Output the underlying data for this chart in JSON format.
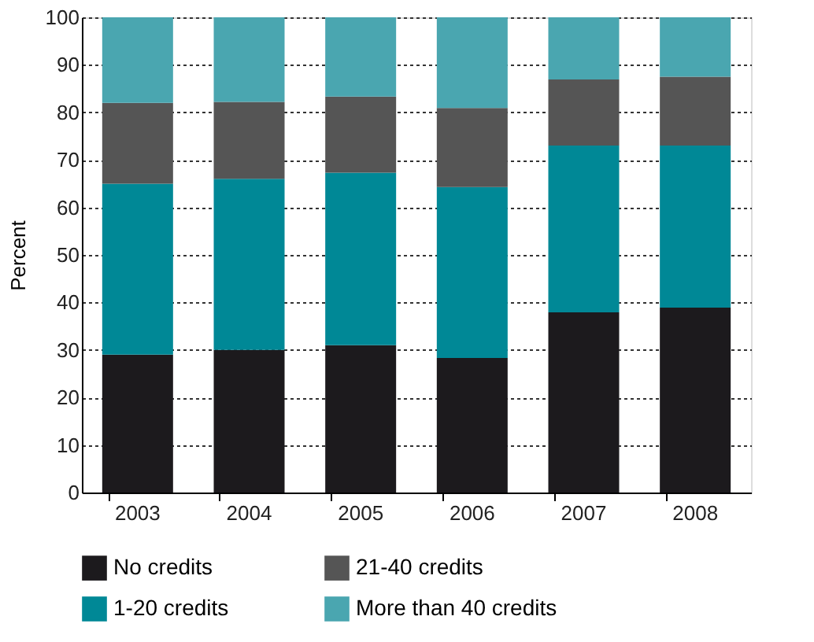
{
  "chart_data": {
    "type": "bar",
    "stacked": true,
    "ylabel": "Percent",
    "categories": [
      "2003",
      "2004",
      "2005",
      "2006",
      "2007",
      "2008"
    ],
    "series": [
      {
        "name": "No credits",
        "color": "#1c1a1d",
        "values": [
          29,
          30,
          31,
          28.3,
          37.9,
          38.9
        ]
      },
      {
        "name": "1-20 credits",
        "color": "#008896",
        "values": [
          36,
          36,
          36.3,
          36,
          35.1,
          34.1
        ]
      },
      {
        "name": "21-40 credits",
        "color": "#555555",
        "values": [
          17,
          16.2,
          16,
          16.6,
          13.9,
          14.5
        ]
      },
      {
        "name": "More than 40 credits",
        "color": "#4aa6b0",
        "values": [
          18,
          17.8,
          16.7,
          19.1,
          13.1,
          12.5
        ]
      }
    ],
    "ylim": [
      0,
      100
    ],
    "yticks": [
      0,
      10,
      20,
      30,
      40,
      50,
      60,
      70,
      80,
      90,
      100
    ],
    "grid": "y",
    "legend": "bottom"
  }
}
